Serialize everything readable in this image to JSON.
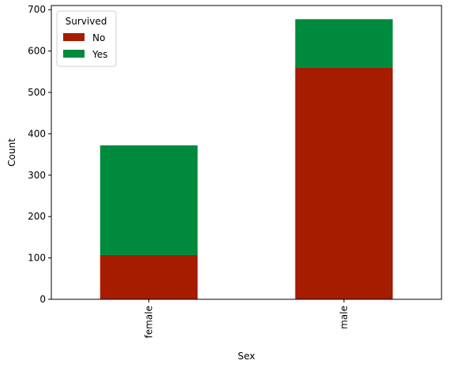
{
  "chart_data": {
    "type": "bar",
    "stacked": true,
    "categories": [
      "female",
      "male"
    ],
    "series": [
      {
        "name": "No",
        "values": [
          107,
          560
        ],
        "color": "#a51c00"
      },
      {
        "name": "Yes",
        "values": [
          265,
          117
        ],
        "color": "#008a3e"
      }
    ],
    "xlabel": "Sex",
    "ylabel": "Count",
    "ylim": [
      0,
      710
    ],
    "yticks": [
      0,
      100,
      200,
      300,
      400,
      500,
      600,
      700
    ],
    "legend": {
      "title": "Survived",
      "placement": "top-left"
    },
    "grid": false
  }
}
